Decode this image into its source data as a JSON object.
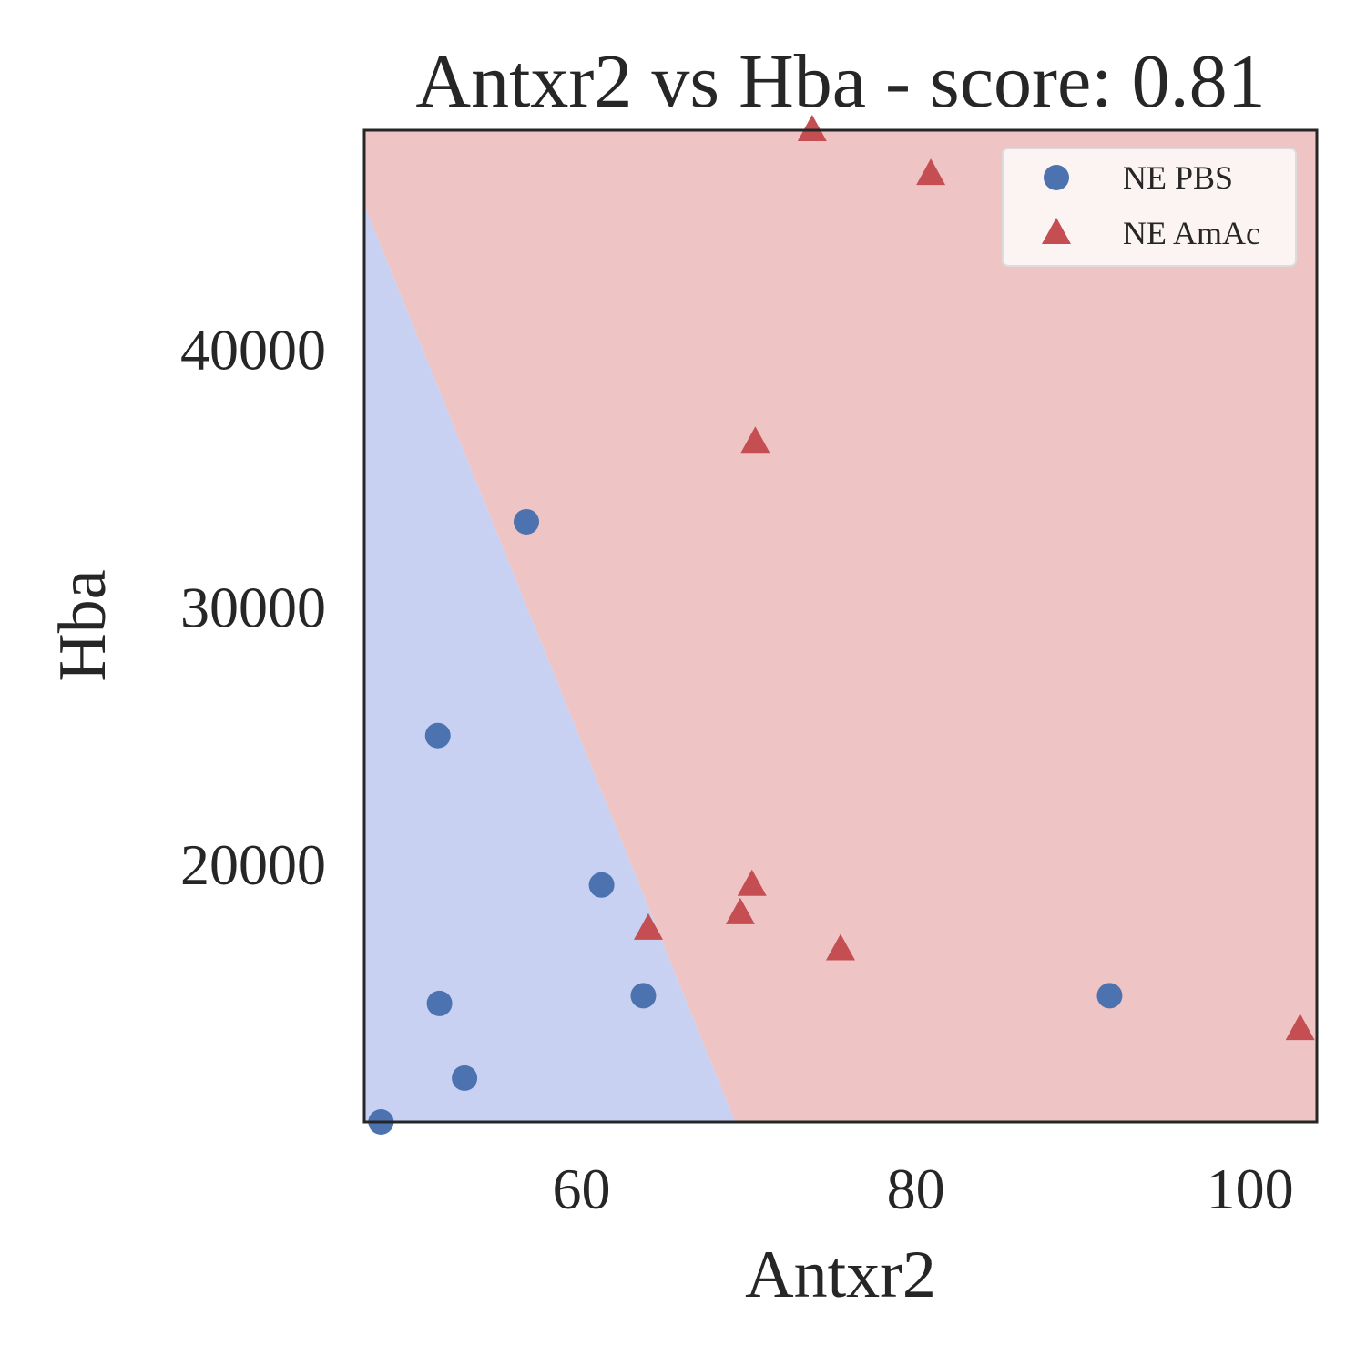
{
  "chart_data": {
    "type": "scatter",
    "title": "Antxr2 vs Hba - score: 0.81",
    "xlabel": "Antxr2",
    "ylabel": "Hba",
    "xlim": [
      47,
      104
    ],
    "ylim": [
      10000,
      48500
    ],
    "x_ticks": [
      60,
      80,
      100
    ],
    "y_ticks": [
      20000,
      30000,
      40000
    ],
    "grid": false,
    "legend_position": "top-right",
    "decision_boundary": {
      "points": [
        [
          47,
          45600
        ],
        [
          69.2,
          10000
        ]
      ],
      "region_colors": {
        "NE PBS": "#c8d1f2",
        "NE AmAc": "#efc4c4"
      }
    },
    "series": [
      {
        "name": "NE PBS",
        "marker": "circle",
        "color": "#4c72b0",
        "points": [
          [
            48,
            10000
          ],
          [
            51.4,
            25000
          ],
          [
            51.5,
            14600
          ],
          [
            53,
            11700
          ],
          [
            56.7,
            33300
          ],
          [
            61.2,
            19200
          ],
          [
            63.7,
            14900
          ],
          [
            91.6,
            14900
          ]
        ]
      },
      {
        "name": "NE AmAc",
        "marker": "triangle",
        "color": "#c44e52",
        "points": [
          [
            73.8,
            48500
          ],
          [
            80.9,
            46800
          ],
          [
            70.4,
            36400
          ],
          [
            64,
            17500
          ],
          [
            69.5,
            18100
          ],
          [
            70.2,
            19200
          ],
          [
            75.5,
            16700
          ],
          [
            103,
            13600
          ]
        ]
      }
    ]
  }
}
